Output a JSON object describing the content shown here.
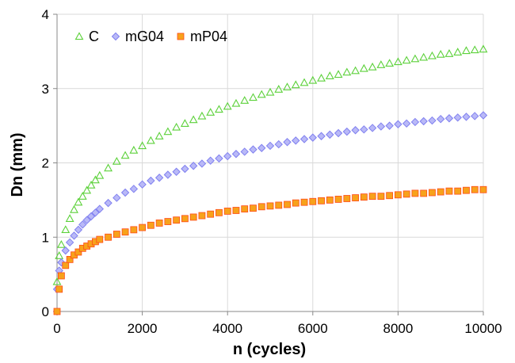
{
  "chart_data": {
    "type": "scatter",
    "xlabel": "n (cycles)",
    "ylabel": "Dn (mm)",
    "xlim": [
      0,
      10000
    ],
    "ylim": [
      0,
      4
    ],
    "x_ticks": [
      "0",
      "2000",
      "4000",
      "6000",
      "8000",
      "10000"
    ],
    "y_ticks": [
      "0",
      "1",
      "2",
      "3",
      "4"
    ],
    "grid": true,
    "legend_position": "top-left",
    "series": [
      {
        "name": "C",
        "marker": "triangle",
        "color": "#5cd13a",
        "x": [
          0,
          50,
          100,
          200,
          300,
          400,
          500,
          600,
          700,
          800,
          900,
          1000,
          1200,
          1400,
          1600,
          1800,
          2000,
          2200,
          2400,
          2600,
          2800,
          3000,
          3200,
          3400,
          3600,
          3800,
          4000,
          4200,
          4400,
          4600,
          4800,
          5000,
          5200,
          5400,
          5600,
          5800,
          6000,
          6200,
          6400,
          6600,
          6800,
          7000,
          7200,
          7400,
          7600,
          7800,
          8000,
          8200,
          8400,
          8600,
          8800,
          9000,
          9200,
          9400,
          9600,
          9800,
          10000
        ],
        "values": [
          0.4,
          0.75,
          0.9,
          1.1,
          1.25,
          1.37,
          1.47,
          1.55,
          1.63,
          1.7,
          1.77,
          1.83,
          1.93,
          2.02,
          2.1,
          2.17,
          2.23,
          2.3,
          2.36,
          2.42,
          2.48,
          2.53,
          2.58,
          2.63,
          2.68,
          2.72,
          2.76,
          2.8,
          2.84,
          2.88,
          2.92,
          2.95,
          2.99,
          3.02,
          3.05,
          3.08,
          3.11,
          3.14,
          3.17,
          3.19,
          3.22,
          3.24,
          3.27,
          3.29,
          3.32,
          3.34,
          3.36,
          3.38,
          3.4,
          3.42,
          3.44,
          3.46,
          3.47,
          3.49,
          3.51,
          3.52,
          3.53
        ]
      },
      {
        "name": "mG04",
        "marker": "diamond",
        "color": "#8080f0",
        "x": [
          0,
          50,
          100,
          200,
          300,
          400,
          500,
          600,
          700,
          800,
          900,
          1000,
          1200,
          1400,
          1600,
          1800,
          2000,
          2200,
          2400,
          2600,
          2800,
          3000,
          3200,
          3400,
          3600,
          3800,
          4000,
          4200,
          4400,
          4600,
          4800,
          5000,
          5200,
          5400,
          5600,
          5800,
          6000,
          6200,
          6400,
          6600,
          6800,
          7000,
          7200,
          7400,
          7600,
          7800,
          8000,
          8200,
          8400,
          8600,
          8800,
          9000,
          9200,
          9400,
          9600,
          9800,
          10000
        ],
        "values": [
          0.3,
          0.55,
          0.66,
          0.82,
          0.93,
          1.02,
          1.1,
          1.17,
          1.23,
          1.28,
          1.33,
          1.38,
          1.46,
          1.53,
          1.6,
          1.65,
          1.71,
          1.76,
          1.8,
          1.84,
          1.88,
          1.92,
          1.96,
          1.99,
          2.03,
          2.06,
          2.09,
          2.12,
          2.15,
          2.18,
          2.2,
          2.23,
          2.25,
          2.28,
          2.3,
          2.32,
          2.34,
          2.36,
          2.38,
          2.4,
          2.42,
          2.44,
          2.45,
          2.47,
          2.49,
          2.5,
          2.52,
          2.53,
          2.55,
          2.56,
          2.57,
          2.59,
          2.6,
          2.61,
          2.62,
          2.63,
          2.64
        ]
      },
      {
        "name": "mP04",
        "marker": "square",
        "color": "#f7a21b",
        "x": [
          0,
          50,
          100,
          200,
          300,
          400,
          500,
          600,
          700,
          800,
          900,
          1000,
          1200,
          1400,
          1600,
          1800,
          2000,
          2200,
          2400,
          2600,
          2800,
          3000,
          3200,
          3400,
          3600,
          3800,
          4000,
          4200,
          4400,
          4600,
          4800,
          5000,
          5200,
          5400,
          5600,
          5800,
          6000,
          6200,
          6400,
          6600,
          6800,
          7000,
          7200,
          7400,
          7600,
          7800,
          8000,
          8200,
          8400,
          8600,
          8800,
          9000,
          9200,
          9400,
          9600,
          9800,
          10000
        ],
        "values": [
          0.0,
          0.3,
          0.48,
          0.62,
          0.7,
          0.76,
          0.8,
          0.85,
          0.88,
          0.91,
          0.94,
          0.97,
          1.0,
          1.04,
          1.07,
          1.1,
          1.13,
          1.16,
          1.19,
          1.21,
          1.23,
          1.25,
          1.27,
          1.29,
          1.31,
          1.33,
          1.35,
          1.36,
          1.38,
          1.39,
          1.41,
          1.42,
          1.43,
          1.44,
          1.46,
          1.47,
          1.48,
          1.49,
          1.5,
          1.51,
          1.52,
          1.53,
          1.54,
          1.55,
          1.55,
          1.56,
          1.57,
          1.58,
          1.59,
          1.59,
          1.6,
          1.61,
          1.62,
          1.62,
          1.63,
          1.64,
          1.64
        ]
      }
    ]
  },
  "colors": {
    "grid": "#d9d9d9",
    "axis": "#888888",
    "series_edge_mP04": "#ff4a1a"
  }
}
